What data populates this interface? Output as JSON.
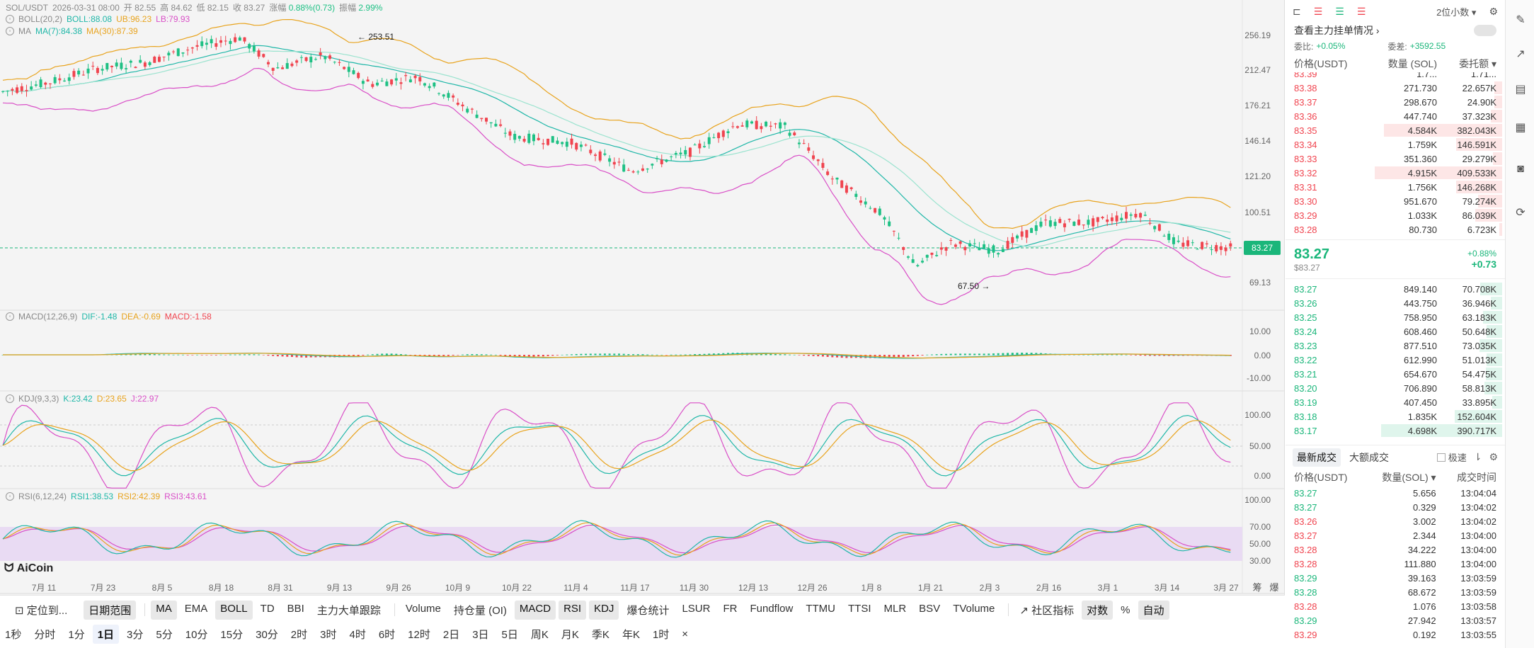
{
  "header": {
    "symbol": "SOL/USDT",
    "date": "2026-03-31 08:00",
    "open_label": "开",
    "open": "82.55",
    "high_label": "高",
    "high": "84.62",
    "low_label": "低",
    "low": "82.15",
    "close_label": "收",
    "close": "83.27",
    "change_label": "涨幅",
    "change": "0.88%(0.73)",
    "amplitude_label": "振幅",
    "amplitude": "2.99%"
  },
  "indicators": {
    "boll": {
      "name": "BOLL(20,2)",
      "mid": "BOLL:88.08",
      "ub": "UB:96.23",
      "lb": "LB:79.93"
    },
    "ma": {
      "name": "MA",
      "ma7": "MA(7):84.38",
      "ma30": "MA(30):87.39"
    },
    "macd": {
      "name": "MACD(12,26,9)",
      "dif": "DIF:-1.48",
      "dea": "DEA:-0.69",
      "macd": "MACD:-1.58"
    },
    "kdj": {
      "name": "KDJ(9,3,3)",
      "k": "K:23.42",
      "d": "D:23.65",
      "j": "J:22.97"
    },
    "rsi": {
      "name": "RSI(6,12,24)",
      "rsi1": "RSI1:38.53",
      "rsi2": "RSI2:42.39",
      "rsi3": "RSI3:43.61"
    }
  },
  "price_axis": [
    "256.19",
    "212.47",
    "176.21",
    "146.14",
    "121.20",
    "100.51",
    "69.13"
  ],
  "current_price_tag": "83.27",
  "annotations": {
    "high": "← 253.51",
    "low": "67.50 →"
  },
  "macd_axis": [
    "10.00",
    "0.00",
    "-10.00"
  ],
  "kdj_axis": [
    "100.00",
    "50.00",
    "0.00"
  ],
  "rsi_axis": [
    "100.00",
    "70.00",
    "50.00",
    "30.00"
  ],
  "date_axis": [
    "7月 11",
    "7月 23",
    "8月 5",
    "8月 18",
    "8月 31",
    "9月 13",
    "9月 26",
    "10月 9",
    "10月 22",
    "11月 4",
    "11月 17",
    "11月 30",
    "12月 13",
    "12月 26",
    "1月 8",
    "1月 21",
    "2月 3",
    "2月 16",
    "3月 1",
    "3月 14",
    "3月 27"
  ],
  "axis_extra": [
    "筹",
    "爆"
  ],
  "logo": "AiCoin",
  "toolbar": {
    "row1": {
      "locate": "定位到...",
      "date_range": "日期范围",
      "indicators": [
        "MA",
        "EMA",
        "BOLL",
        "TD",
        "BBI",
        "主力大单跟踪"
      ],
      "sub_indicators": [
        "Volume",
        "持仓量 (OI)",
        "MACD",
        "RSI",
        "KDJ",
        "爆仓统计",
        "LSUR",
        "FR",
        "Fundflow",
        "TTMU",
        "TTSI",
        "MLR",
        "BSV",
        "TVolume"
      ],
      "community": "社区指标",
      "log": "对数",
      "percent": "%",
      "auto": "自动"
    },
    "row2": [
      "1秒",
      "分时",
      "1分",
      "1日",
      "3分",
      "5分",
      "10分",
      "15分",
      "30分",
      "2时",
      "3时",
      "4时",
      "6时",
      "12时",
      "2日",
      "3日",
      "5日",
      "周K",
      "月K",
      "季K",
      "年K",
      "1时"
    ],
    "close": "×"
  },
  "orderbook": {
    "decimals": "2位小数 ▾",
    "big_orders": "查看主力挂单情况 ›",
    "ratio_label": "委比:",
    "ratio": "+0.05%",
    "diff_label": "委差:",
    "diff": "+3592.55",
    "cols": {
      "price": "价格(USDT)",
      "qty": "数量 (SOL)",
      "total": "委托额 ▾"
    },
    "partial_top": {
      "price": "83.39",
      "qty": "1.7...",
      "total": "1.71..."
    },
    "asks": [
      {
        "price": "83.38",
        "qty": "271.730",
        "total": "22.657K",
        "depth": 0.06
      },
      {
        "price": "83.37",
        "qty": "298.670",
        "total": "24.90K",
        "depth": 0.06
      },
      {
        "price": "83.36",
        "qty": "447.740",
        "total": "37.323K",
        "depth": 0.09
      },
      {
        "price": "83.35",
        "qty": "4.584K",
        "total": "382.043K",
        "depth": 0.93
      },
      {
        "price": "83.34",
        "qty": "1.759K",
        "total": "146.591K",
        "depth": 0.36
      },
      {
        "price": "83.33",
        "qty": "351.360",
        "total": "29.279K",
        "depth": 0.07
      },
      {
        "price": "83.32",
        "qty": "4.915K",
        "total": "409.533K",
        "depth": 1.0
      },
      {
        "price": "83.31",
        "qty": "1.756K",
        "total": "146.268K",
        "depth": 0.36
      },
      {
        "price": "83.30",
        "qty": "951.670",
        "total": "79.274K",
        "depth": 0.19
      },
      {
        "price": "83.29",
        "qty": "1.033K",
        "total": "86.039K",
        "depth": 0.21
      },
      {
        "price": "83.28",
        "qty": "80.730",
        "total": "6.723K",
        "depth": 0.02
      }
    ],
    "last_price": "83.27",
    "last_price_usd": "$83.27",
    "last_change_pct": "+0.88%",
    "last_change": "+0.73",
    "bids": [
      {
        "price": "83.27",
        "qty": "849.140",
        "total": "70.708K",
        "depth": 0.17
      },
      {
        "price": "83.26",
        "qty": "443.750",
        "total": "36.946K",
        "depth": 0.09
      },
      {
        "price": "83.25",
        "qty": "758.950",
        "total": "63.183K",
        "depth": 0.15
      },
      {
        "price": "83.24",
        "qty": "608.460",
        "total": "50.648K",
        "depth": 0.12
      },
      {
        "price": "83.23",
        "qty": "877.510",
        "total": "73.035K",
        "depth": 0.18
      },
      {
        "price": "83.22",
        "qty": "612.990",
        "total": "51.013K",
        "depth": 0.12
      },
      {
        "price": "83.21",
        "qty": "654.670",
        "total": "54.475K",
        "depth": 0.13
      },
      {
        "price": "83.20",
        "qty": "706.890",
        "total": "58.813K",
        "depth": 0.14
      },
      {
        "price": "83.19",
        "qty": "407.450",
        "total": "33.895K",
        "depth": 0.08
      },
      {
        "price": "83.18",
        "qty": "1.835K",
        "total": "152.604K",
        "depth": 0.37
      },
      {
        "price": "83.17",
        "qty": "4.698K",
        "total": "390.717K",
        "depth": 0.95
      }
    ],
    "trades_tabs": [
      "最新成交",
      "大额成交"
    ],
    "fast_label": "极速",
    "trade_cols": {
      "price": "价格(USDT)",
      "qty": "数量(SOL) ▾",
      "time": "成交时间"
    },
    "trades": [
      {
        "price": "83.27",
        "qty": "5.656",
        "time": "13:04:04",
        "side": "up"
      },
      {
        "price": "83.27",
        "qty": "0.329",
        "time": "13:04:02",
        "side": "up"
      },
      {
        "price": "83.26",
        "qty": "3.002",
        "time": "13:04:02",
        "side": "dn"
      },
      {
        "price": "83.27",
        "qty": "2.344",
        "time": "13:04:00",
        "side": "dn"
      },
      {
        "price": "83.28",
        "qty": "34.222",
        "time": "13:04:00",
        "side": "dn"
      },
      {
        "price": "83.28",
        "qty": "111.880",
        "time": "13:04:00",
        "side": "dn"
      },
      {
        "price": "83.29",
        "qty": "39.163",
        "time": "13:03:59",
        "side": "up"
      },
      {
        "price": "83.28",
        "qty": "68.672",
        "time": "13:03:59",
        "side": "up"
      },
      {
        "price": "83.28",
        "qty": "1.076",
        "time": "13:03:58",
        "side": "dn"
      },
      {
        "price": "83.29",
        "qty": "27.942",
        "time": "13:03:57",
        "side": "up"
      },
      {
        "price": "83.29",
        "qty": "0.192",
        "time": "13:03:55",
        "side": "dn"
      }
    ]
  },
  "colors": {
    "up": "#1ec084",
    "down": "#f0444f",
    "boll_mid": "#1fb7a8",
    "boll_ub": "#e8a31d",
    "boll_lb": "#d94fc7",
    "rsi_band": "#e6d5f2"
  }
}
